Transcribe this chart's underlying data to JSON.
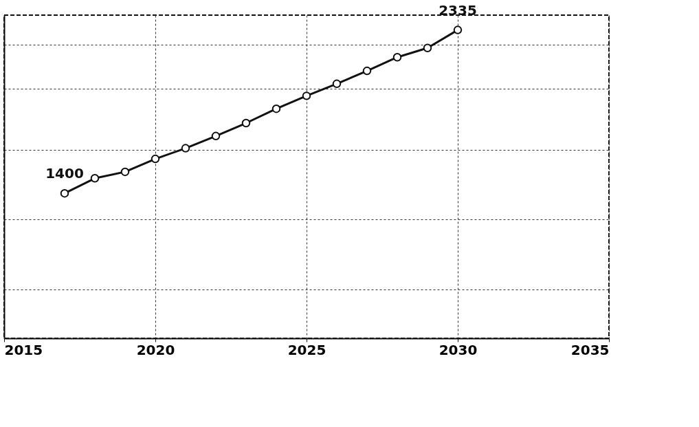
{
  "chart_data": {
    "type": "line",
    "x": [
      2017,
      2018,
      2019,
      2020,
      2021,
      2022,
      2023,
      2024,
      2025,
      2026,
      2027,
      2028,
      2029,
      2030
    ],
    "series": [
      {
        "color": "#111111",
        "values": [
          1400,
          1486,
          1523,
          1597,
          1658,
          1728,
          1802,
          1884,
          1958,
          2027,
          2101,
          2179,
          2232,
          2335
        ],
        "value_labels": [
          "1400",
          null,
          null,
          null,
          null,
          null,
          null,
          null,
          null,
          null,
          null,
          null,
          null,
          "2335"
        ]
      }
    ],
    "xlim": [
      2015,
      2035
    ],
    "xticks": [
      2015,
      2020,
      2025,
      2030,
      2035
    ],
    "ylim": [
      570,
      2420
    ],
    "yticks": [
      {
        "value": 850,
        "label": null
      },
      {
        "value": 1250,
        "label": null
      },
      {
        "value": 1650,
        "label": null
      },
      {
        "value": 2000,
        "label": null
      },
      {
        "value": 2250,
        "label": null
      }
    ],
    "tick_labels": "x",
    "grid": true,
    "marker": "circle",
    "line_style": "solid"
  }
}
